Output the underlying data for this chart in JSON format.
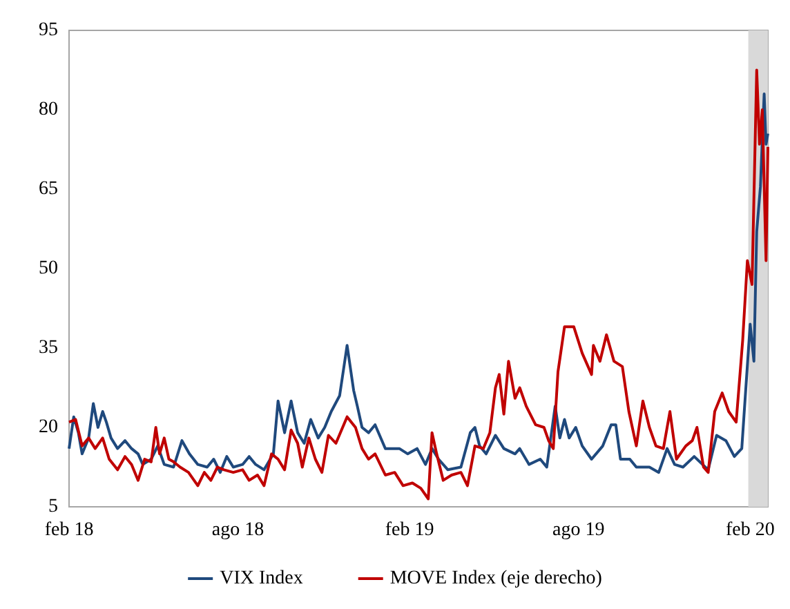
{
  "chart_data": {
    "type": "line",
    "legend": "bottom",
    "marker": "none",
    "grid": false,
    "ylim": [
      5,
      95
    ],
    "yticks": [
      5,
      20,
      35,
      50,
      65,
      80,
      95
    ],
    "xlim": [
      "2018-02-01",
      "2020-02-20"
    ],
    "xticks": [
      {
        "value": "2018-02-01",
        "label": "feb 18"
      },
      {
        "value": "2018-08-01",
        "label": "ago 18"
      },
      {
        "value": "2019-02-01",
        "label": "feb 19"
      },
      {
        "value": "2019-08-01",
        "label": "ago 19"
      },
      {
        "value": "2020-02-01",
        "label": "feb 20"
      }
    ],
    "bands": [
      {
        "axis": "x",
        "from": "2020-01-30",
        "to": "2020-02-20",
        "color": "#d9d9d9"
      }
    ],
    "series": [
      {
        "name": "VIX Index",
        "color": "#1f497d",
        "x": [
          "2018-02-01",
          "2018-02-06",
          "2018-02-11",
          "2018-02-15",
          "2018-02-22",
          "2018-02-27",
          "2018-03-04",
          "2018-03-09",
          "2018-03-13",
          "2018-03-18",
          "2018-03-25",
          "2018-04-02",
          "2018-04-09",
          "2018-04-16",
          "2018-04-21",
          "2018-04-30",
          "2018-05-07",
          "2018-05-14",
          "2018-05-24",
          "2018-06-02",
          "2018-06-10",
          "2018-06-19",
          "2018-06-29",
          "2018-07-06",
          "2018-07-13",
          "2018-07-20",
          "2018-07-27",
          "2018-08-06",
          "2018-08-13",
          "2018-08-20",
          "2018-08-29",
          "2018-09-08",
          "2018-09-13",
          "2018-09-20",
          "2018-09-27",
          "2018-10-04",
          "2018-10-11",
          "2018-10-18",
          "2018-10-26",
          "2018-11-02",
          "2018-11-09",
          "2018-11-18",
          "2018-11-26",
          "2018-12-03",
          "2018-12-07",
          "2018-12-12",
          "2018-12-19",
          "2018-12-26",
          "2019-01-06",
          "2019-01-21",
          "2019-01-30",
          "2019-02-09",
          "2019-02-18",
          "2019-02-25",
          "2019-03-04",
          "2019-03-14",
          "2019-03-28",
          "2019-04-07",
          "2019-04-12",
          "2019-04-17",
          "2019-04-24",
          "2019-05-04",
          "2019-05-13",
          "2019-05-25",
          "2019-05-30",
          "2019-06-09",
          "2019-06-21",
          "2019-06-28",
          "2019-07-07",
          "2019-07-12",
          "2019-07-17",
          "2019-07-22",
          "2019-07-29",
          "2019-08-05",
          "2019-08-15",
          "2019-08-27",
          "2019-09-05",
          "2019-09-10",
          "2019-09-15",
          "2019-09-25",
          "2019-10-02",
          "2019-10-16",
          "2019-10-26",
          "2019-11-04",
          "2019-11-12",
          "2019-11-21",
          "2019-12-03",
          "2019-12-18",
          "2019-12-27",
          "2020-01-06",
          "2020-01-15",
          "2020-01-23",
          "2020-01-27",
          "2020-02-01",
          "2020-02-05",
          "2020-02-08",
          "2020-02-12",
          "2020-02-16",
          "2020-02-18",
          "2020-02-20"
        ],
        "values": [
          16,
          22,
          19,
          15,
          18,
          24.5,
          20,
          23,
          21,
          18,
          16,
          17.5,
          16,
          15,
          13,
          14,
          16.5,
          13,
          12.5,
          17.5,
          15,
          13,
          12.5,
          14,
          11.5,
          14.5,
          12.5,
          13,
          14.5,
          13,
          12,
          15,
          25,
          19,
          25,
          19,
          17,
          21.5,
          18,
          20,
          23,
          26,
          35.5,
          27,
          24,
          20,
          19,
          20.5,
          16,
          16,
          15,
          16,
          13,
          16,
          14,
          12,
          12.5,
          19,
          20,
          16.5,
          15,
          18.5,
          16,
          15,
          16,
          13,
          14,
          12.5,
          24,
          18,
          21.5,
          18,
          20,
          16.5,
          14,
          16.5,
          20.5,
          20.5,
          14,
          14,
          12.5,
          12.5,
          11.5,
          16,
          13,
          12.5,
          14.5,
          12,
          18.5,
          17.5,
          14.5,
          16,
          26.5,
          39.5,
          32.5,
          57,
          65.5,
          83,
          73.5,
          75.5
        ]
      },
      {
        "name": "MOVE Index (eje derecho)",
        "color": "#c00000",
        "x": [
          "2018-02-01",
          "2018-02-08",
          "2018-02-15",
          "2018-02-22",
          "2018-03-01",
          "2018-03-09",
          "2018-03-16",
          "2018-03-25",
          "2018-04-02",
          "2018-04-09",
          "2018-04-16",
          "2018-04-23",
          "2018-04-30",
          "2018-05-05",
          "2018-05-09",
          "2018-05-14",
          "2018-05-19",
          "2018-05-24",
          "2018-05-31",
          "2018-06-09",
          "2018-06-19",
          "2018-06-26",
          "2018-07-03",
          "2018-07-10",
          "2018-07-17",
          "2018-07-27",
          "2018-08-06",
          "2018-08-13",
          "2018-08-22",
          "2018-08-29",
          "2018-09-06",
          "2018-09-13",
          "2018-09-20",
          "2018-09-27",
          "2018-10-04",
          "2018-10-09",
          "2018-10-16",
          "2018-10-23",
          "2018-10-30",
          "2018-11-06",
          "2018-11-14",
          "2018-11-26",
          "2018-12-05",
          "2018-12-12",
          "2018-12-19",
          "2018-12-26",
          "2019-01-06",
          "2019-01-16",
          "2019-01-25",
          "2019-02-04",
          "2019-02-13",
          "2019-02-21",
          "2019-02-25",
          "2019-03-02",
          "2019-03-09",
          "2019-03-18",
          "2019-03-28",
          "2019-04-04",
          "2019-04-12",
          "2019-04-21",
          "2019-04-28",
          "2019-05-04",
          "2019-05-08",
          "2019-05-13",
          "2019-05-18",
          "2019-05-25",
          "2019-05-30",
          "2019-06-06",
          "2019-06-16",
          "2019-06-25",
          "2019-06-30",
          "2019-07-05",
          "2019-07-10",
          "2019-07-17",
          "2019-07-27",
          "2019-08-05",
          "2019-08-15",
          "2019-08-17",
          "2019-08-24",
          "2019-08-31",
          "2019-09-08",
          "2019-09-17",
          "2019-09-24",
          "2019-10-02",
          "2019-10-09",
          "2019-10-16",
          "2019-10-23",
          "2019-10-31",
          "2019-11-07",
          "2019-11-14",
          "2019-11-24",
          "2019-12-01",
          "2019-12-06",
          "2019-12-13",
          "2019-12-18",
          "2019-12-25",
          "2020-01-02",
          "2020-01-09",
          "2020-01-17",
          "2020-01-24",
          "2020-01-29",
          "2020-02-03",
          "2020-02-08",
          "2020-02-11",
          "2020-02-14",
          "2020-02-18",
          "2020-02-20"
        ],
        "values": [
          21,
          21.5,
          16.5,
          18,
          16,
          18,
          14,
          12,
          14.5,
          13,
          10,
          14,
          13.5,
          20,
          15,
          18,
          14,
          13.5,
          12.5,
          11.5,
          9,
          11.5,
          10,
          12.5,
          12,
          11.5,
          12,
          10,
          11,
          9,
          15,
          14,
          12,
          19.5,
          17,
          12.5,
          18,
          14,
          11.5,
          18.5,
          17,
          22,
          20,
          16,
          14,
          15,
          11,
          11.5,
          9,
          9.5,
          8.5,
          6.5,
          19,
          15,
          10,
          11,
          11.5,
          9,
          16.5,
          16,
          19,
          27.5,
          30,
          22.5,
          32.5,
          25.5,
          27.5,
          24,
          20.5,
          20,
          17.5,
          16,
          30.5,
          39,
          39,
          34,
          30,
          35.5,
          32.5,
          37.5,
          32.5,
          31.5,
          23,
          16.5,
          25,
          20,
          16.5,
          16,
          23,
          14,
          16.5,
          17.5,
          20,
          12.5,
          11.5,
          23,
          26.5,
          23,
          21,
          36.5,
          51.5,
          47,
          87.5,
          73.5,
          80,
          51.5,
          73
        ]
      }
    ]
  }
}
